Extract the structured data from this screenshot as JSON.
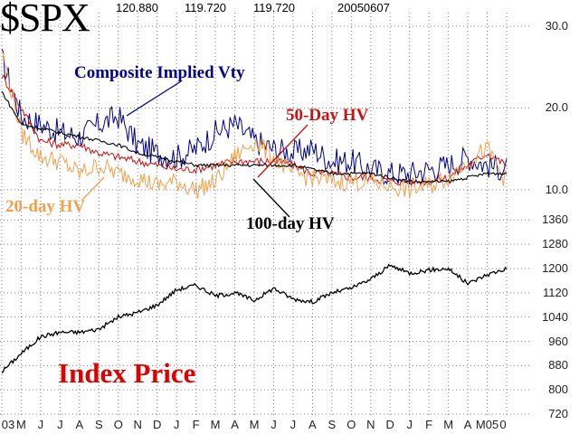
{
  "header": {
    "ticker": "$SPX",
    "value1": "120.880",
    "value2": "119.720",
    "value3": "119.720",
    "date": "20050607"
  },
  "labels": {
    "composite": "Composite Implied Vty",
    "hv50": "50-Day HV",
    "hv20": "20-day HV",
    "hv100": "100-day HV",
    "index": "Index Price"
  },
  "colors": {
    "composite": "#00008b",
    "hv50": "#cc1111",
    "hv20": "#f0a050",
    "hv100": "#000000",
    "index": "#000000",
    "index_label": "#dd0000",
    "grid": "#808080"
  },
  "chart_data": [
    {
      "type": "line",
      "panel": "volatility",
      "ylim": [
        8,
        31
      ],
      "yticks": [
        "30.0",
        "20.0",
        "10.0"
      ],
      "x": [
        "2003-04",
        "2003-05",
        "2003-06",
        "2003-07",
        "2003-08",
        "2003-09",
        "2003-10",
        "2003-11",
        "2003-12",
        "2004-01",
        "2004-02",
        "2004-03",
        "2004-04",
        "2004-05",
        "2004-06",
        "2004-07",
        "2004-08",
        "2004-09",
        "2004-10",
        "2004-11",
        "2004-12",
        "2005-01",
        "2005-02",
        "2005-03",
        "2005-04",
        "2005-05",
        "2005-06"
      ],
      "series": [
        {
          "name": "Composite Implied Vty",
          "values": [
            26,
            19,
            18,
            17,
            16.5,
            18,
            19,
            15.5,
            14.5,
            14,
            15,
            17,
            18,
            16,
            15,
            14.5,
            15,
            13.5,
            13.5,
            12.5,
            12,
            12,
            12.5,
            13,
            14,
            13,
            12.5
          ]
        },
        {
          "name": "50-Day HV",
          "values": [
            24,
            20,
            16,
            15.5,
            15.5,
            14.5,
            14,
            13.5,
            13,
            12.5,
            12.5,
            13,
            13.5,
            13.5,
            13.5,
            13,
            12,
            12,
            11.5,
            11.5,
            11,
            11,
            11,
            11.5,
            13,
            14.5,
            13
          ]
        },
        {
          "name": "20-day HV",
          "values": [
            27,
            17,
            14,
            13.5,
            12,
            13,
            12,
            11.5,
            10.5,
            11,
            10,
            11,
            14,
            16,
            14,
            12,
            11.5,
            11,
            11,
            11,
            10.5,
            10,
            10.5,
            11.5,
            13.5,
            15,
            11
          ]
        },
        {
          "name": "100-day HV",
          "values": [
            22,
            18,
            17.5,
            17,
            16.5,
            16,
            15.5,
            14.5,
            14,
            13.5,
            13,
            13,
            13,
            13,
            13,
            13,
            12.5,
            12,
            12,
            12,
            11.5,
            11,
            11,
            11,
            11.5,
            12,
            12
          ]
        }
      ]
    },
    {
      "type": "line",
      "panel": "price",
      "ylim": [
        720,
        1370
      ],
      "yticks": [
        "1360",
        "1280",
        "1200",
        "1120",
        "1040",
        "960",
        "880",
        "800",
        "720"
      ],
      "x": [
        "2003-04",
        "2003-05",
        "2003-06",
        "2003-07",
        "2003-08",
        "2003-09",
        "2003-10",
        "2003-11",
        "2003-12",
        "2004-01",
        "2004-02",
        "2004-03",
        "2004-04",
        "2004-05",
        "2004-06",
        "2004-07",
        "2004-08",
        "2004-09",
        "2004-10",
        "2004-11",
        "2004-12",
        "2005-01",
        "2005-02",
        "2005-03",
        "2005-04",
        "2005-05",
        "2005-06"
      ],
      "series": [
        {
          "name": "Index Price",
          "values": [
            860,
            920,
            975,
            990,
            990,
            1000,
            1040,
            1055,
            1080,
            1130,
            1145,
            1110,
            1120,
            1095,
            1135,
            1100,
            1090,
            1120,
            1135,
            1165,
            1210,
            1185,
            1195,
            1200,
            1150,
            1180,
            1200
          ]
        }
      ]
    }
  ],
  "xaxis": {
    "ticks": [
      "03",
      "M",
      "J",
      "J",
      "A",
      "S",
      "O",
      "N",
      "D",
      "J",
      "F",
      "M",
      "A",
      "M",
      "J",
      "J",
      "A",
      "S",
      "O",
      "N",
      "D",
      "J",
      "F",
      "M",
      "A",
      "M05",
      "0"
    ]
  }
}
